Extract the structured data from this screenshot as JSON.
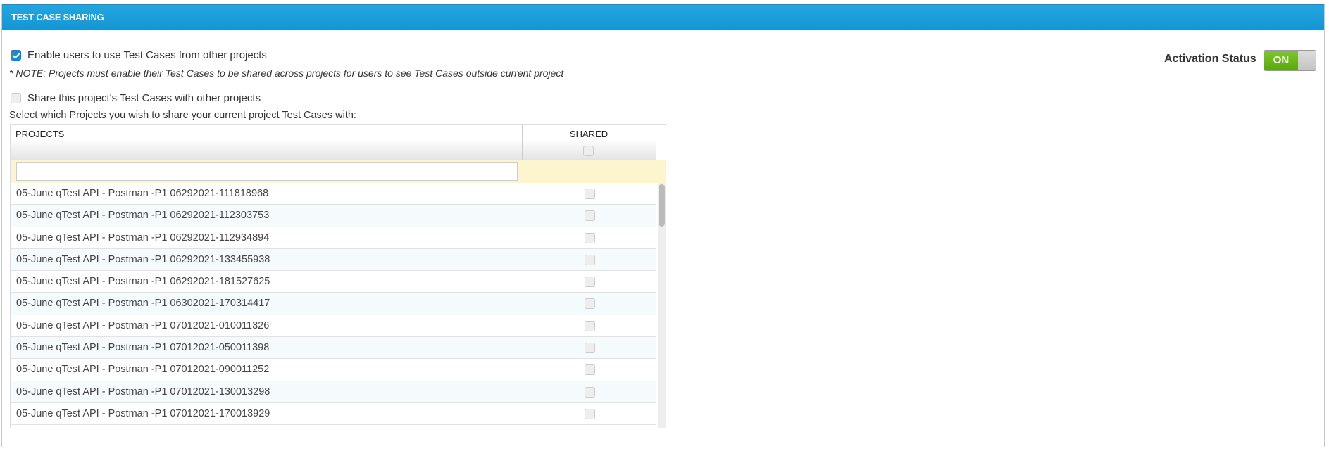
{
  "header": {
    "title": "TEST CASE SHARING"
  },
  "options": {
    "enable_label": "Enable users to use Test Cases from other projects",
    "enable_checked": true,
    "note": "* NOTE: Projects must enable their Test Cases to be shared across projects for users to see Test Cases outside current project",
    "share_label": "Share this project's Test Cases with other projects",
    "share_checked": false,
    "select_prompt": "Select which Projects you wish to share your current project Test Cases with:"
  },
  "activation": {
    "label": "Activation Status",
    "toggle": "ON"
  },
  "table": {
    "columns": [
      "PROJECTS",
      "SHARED"
    ],
    "filter_value": "",
    "rows": [
      "05-June qTest API - Postman -P1 06292021-111818968",
      "05-June qTest API - Postman -P1 06292021-112303753",
      "05-June qTest API - Postman -P1 06292021-112934894",
      "05-June qTest API - Postman -P1 06292021-133455938",
      "05-June qTest API - Postman -P1 06292021-181527625",
      "05-June qTest API - Postman -P1 06302021-170314417",
      "05-June qTest API - Postman -P1 07012021-010011326",
      "05-June qTest API - Postman -P1 07012021-050011398",
      "05-June qTest API - Postman -P1 07012021-090011252",
      "05-June qTest API - Postman -P1 07012021-130013298",
      "05-June qTest API - Postman -P1 07012021-170013929"
    ]
  }
}
